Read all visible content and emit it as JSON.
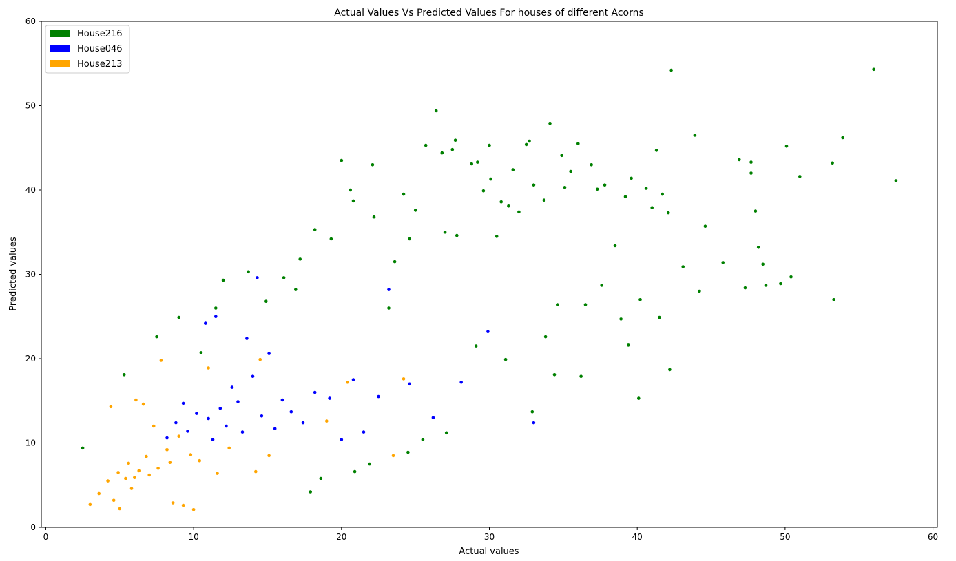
{
  "chart_data": {
    "type": "scatter",
    "title": "Actual Values Vs Predicted Values For houses of different Acorns",
    "xlabel": "Actual values",
    "ylabel": "Predicted values",
    "xlim": [
      -0.3,
      60.3
    ],
    "ylim": [
      0,
      60
    ],
    "xticks": [
      0,
      10,
      20,
      30,
      40,
      50,
      60
    ],
    "yticks": [
      0,
      10,
      20,
      30,
      40,
      50,
      60
    ],
    "grid": false,
    "legend_position": "top-left",
    "series": [
      {
        "name": "House216",
        "color": "#008000",
        "points": [
          [
            2.5,
            9.4
          ],
          [
            5.3,
            18.1
          ],
          [
            7.5,
            22.6
          ],
          [
            9.0,
            24.9
          ],
          [
            10.5,
            20.7
          ],
          [
            11.5,
            26.0
          ],
          [
            12.0,
            29.3
          ],
          [
            13.7,
            30.3
          ],
          [
            14.9,
            26.8
          ],
          [
            16.1,
            29.6
          ],
          [
            16.9,
            28.2
          ],
          [
            17.2,
            31.8
          ],
          [
            17.9,
            4.2
          ],
          [
            18.2,
            35.3
          ],
          [
            18.6,
            5.8
          ],
          [
            19.3,
            34.2
          ],
          [
            20.0,
            43.5
          ],
          [
            20.6,
            40.0
          ],
          [
            20.8,
            38.7
          ],
          [
            20.9,
            6.6
          ],
          [
            21.9,
            7.5
          ],
          [
            22.1,
            43.0
          ],
          [
            22.2,
            36.8
          ],
          [
            23.2,
            26.0
          ],
          [
            23.6,
            31.5
          ],
          [
            24.2,
            39.5
          ],
          [
            24.6,
            34.2
          ],
          [
            25.0,
            37.6
          ],
          [
            25.7,
            45.3
          ],
          [
            26.4,
            49.4
          ],
          [
            26.8,
            44.4
          ],
          [
            27.0,
            35.0
          ],
          [
            27.5,
            44.8
          ],
          [
            27.7,
            45.9
          ],
          [
            27.8,
            34.6
          ],
          [
            28.8,
            43.1
          ],
          [
            29.2,
            43.3
          ],
          [
            29.6,
            39.9
          ],
          [
            30.0,
            45.3
          ],
          [
            30.1,
            41.3
          ],
          [
            30.5,
            34.5
          ],
          [
            30.8,
            38.6
          ],
          [
            31.3,
            38.1
          ],
          [
            31.6,
            42.4
          ],
          [
            32.0,
            37.4
          ],
          [
            32.5,
            45.4
          ],
          [
            32.7,
            45.8
          ],
          [
            33.0,
            40.6
          ],
          [
            33.7,
            38.8
          ],
          [
            34.1,
            47.9
          ],
          [
            34.6,
            26.4
          ],
          [
            34.9,
            44.1
          ],
          [
            35.1,
            40.3
          ],
          [
            35.5,
            42.2
          ],
          [
            36.0,
            45.5
          ],
          [
            36.5,
            26.4
          ],
          [
            36.9,
            43.0
          ],
          [
            37.3,
            40.1
          ],
          [
            37.8,
            40.6
          ],
          [
            38.5,
            33.4
          ],
          [
            39.2,
            39.2
          ],
          [
            39.6,
            41.4
          ],
          [
            40.1,
            15.3
          ],
          [
            40.6,
            40.2
          ],
          [
            41.0,
            37.9
          ],
          [
            41.3,
            44.7
          ],
          [
            41.7,
            39.5
          ],
          [
            42.1,
            37.3
          ],
          [
            42.2,
            18.7
          ],
          [
            42.3,
            54.2
          ],
          [
            43.9,
            46.5
          ],
          [
            44.6,
            35.7
          ],
          [
            46.9,
            43.6
          ],
          [
            47.7,
            43.3
          ],
          [
            47.7,
            42.0
          ],
          [
            48.0,
            37.5
          ],
          [
            48.2,
            33.2
          ],
          [
            48.5,
            31.2
          ],
          [
            50.1,
            45.2
          ],
          [
            51.0,
            41.6
          ],
          [
            53.2,
            43.2
          ],
          [
            53.3,
            27.0
          ],
          [
            53.9,
            46.2
          ],
          [
            56.0,
            54.3
          ],
          [
            57.5,
            41.1
          ],
          [
            24.5,
            8.9
          ],
          [
            27.1,
            11.2
          ],
          [
            25.5,
            10.4
          ],
          [
            29.1,
            21.5
          ],
          [
            31.1,
            19.9
          ],
          [
            32.9,
            13.7
          ],
          [
            36.2,
            17.9
          ],
          [
            34.4,
            18.1
          ],
          [
            33.8,
            22.6
          ],
          [
            37.6,
            28.7
          ],
          [
            38.9,
            24.7
          ],
          [
            39.4,
            21.6
          ],
          [
            40.2,
            27.0
          ],
          [
            41.5,
            24.9
          ],
          [
            43.1,
            30.9
          ],
          [
            44.2,
            28.0
          ],
          [
            45.8,
            31.4
          ],
          [
            47.3,
            28.4
          ],
          [
            48.7,
            28.7
          ],
          [
            49.7,
            28.9
          ],
          [
            50.4,
            29.7
          ]
        ]
      },
      {
        "name": "House046",
        "color": "#0000ff",
        "points": [
          [
            8.2,
            10.6
          ],
          [
            8.8,
            12.4
          ],
          [
            9.3,
            14.7
          ],
          [
            9.6,
            11.4
          ],
          [
            10.2,
            13.5
          ],
          [
            10.8,
            24.2
          ],
          [
            11.0,
            12.9
          ],
          [
            11.3,
            10.4
          ],
          [
            11.5,
            25.0
          ],
          [
            11.8,
            14.1
          ],
          [
            12.2,
            12.0
          ],
          [
            12.6,
            16.6
          ],
          [
            13.0,
            14.9
          ],
          [
            13.3,
            11.3
          ],
          [
            13.6,
            22.4
          ],
          [
            14.0,
            17.9
          ],
          [
            14.3,
            29.6
          ],
          [
            14.6,
            13.2
          ],
          [
            15.1,
            20.6
          ],
          [
            15.5,
            11.7
          ],
          [
            16.0,
            15.1
          ],
          [
            16.6,
            13.7
          ],
          [
            17.4,
            12.4
          ],
          [
            18.2,
            16.0
          ],
          [
            19.2,
            15.3
          ],
          [
            20.0,
            10.4
          ],
          [
            20.8,
            17.5
          ],
          [
            21.5,
            11.3
          ],
          [
            22.5,
            15.5
          ],
          [
            23.2,
            28.2
          ],
          [
            24.6,
            17.0
          ],
          [
            26.2,
            13.0
          ],
          [
            28.1,
            17.2
          ],
          [
            29.9,
            23.2
          ],
          [
            33.0,
            12.4
          ]
        ]
      },
      {
        "name": "House213",
        "color": "#ffa500",
        "points": [
          [
            3.0,
            2.7
          ],
          [
            3.6,
            4.0
          ],
          [
            4.2,
            5.5
          ],
          [
            4.4,
            14.3
          ],
          [
            4.6,
            3.2
          ],
          [
            4.9,
            6.5
          ],
          [
            5.0,
            2.2
          ],
          [
            5.4,
            5.8
          ],
          [
            5.6,
            7.6
          ],
          [
            5.8,
            4.6
          ],
          [
            6.0,
            5.9
          ],
          [
            6.1,
            15.1
          ],
          [
            6.3,
            6.7
          ],
          [
            6.6,
            14.6
          ],
          [
            6.8,
            8.4
          ],
          [
            7.0,
            6.2
          ],
          [
            7.3,
            12.0
          ],
          [
            7.6,
            7.0
          ],
          [
            7.8,
            19.8
          ],
          [
            8.2,
            9.2
          ],
          [
            8.4,
            7.7
          ],
          [
            8.6,
            2.9
          ],
          [
            9.0,
            10.8
          ],
          [
            9.3,
            2.6
          ],
          [
            9.8,
            8.6
          ],
          [
            10.0,
            2.1
          ],
          [
            10.4,
            7.9
          ],
          [
            11.0,
            18.9
          ],
          [
            11.6,
            6.4
          ],
          [
            12.4,
            9.4
          ],
          [
            14.2,
            6.6
          ],
          [
            14.5,
            19.9
          ],
          [
            15.1,
            8.5
          ],
          [
            19.0,
            12.6
          ],
          [
            20.4,
            17.2
          ],
          [
            23.5,
            8.5
          ],
          [
            24.2,
            17.6
          ]
        ]
      }
    ]
  }
}
